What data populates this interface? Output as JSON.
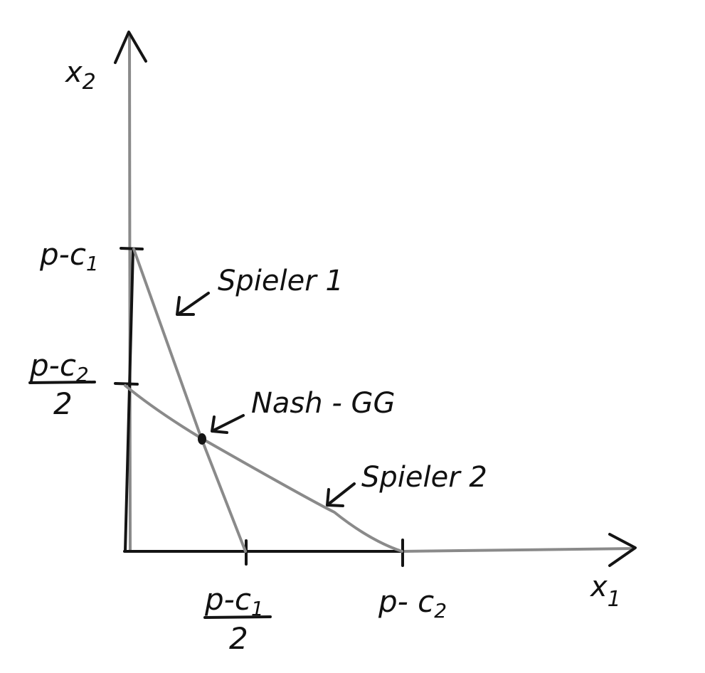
{
  "figure": {
    "axes": {
      "x_label": "x",
      "x_subscript": "1",
      "y_label": "x",
      "y_subscript": "2"
    },
    "y_ticks": {
      "upper": {
        "base": "p-c",
        "subscript": "1"
      },
      "lower": {
        "base": "p-c",
        "subscript": "2",
        "denominator": "2"
      }
    },
    "x_ticks": {
      "left": {
        "base": "p-c",
        "subscript": "1",
        "denominator": "2"
      },
      "right": {
        "base": "p- c",
        "subscript": "2"
      }
    },
    "annotations": {
      "player1": "Spieler 1",
      "player2": "Spieler 2",
      "equilibrium": "Nash - GG"
    },
    "colors": {
      "ink": "#141414",
      "pencil": "#8a8a8a",
      "background": "#ffffff"
    }
  }
}
